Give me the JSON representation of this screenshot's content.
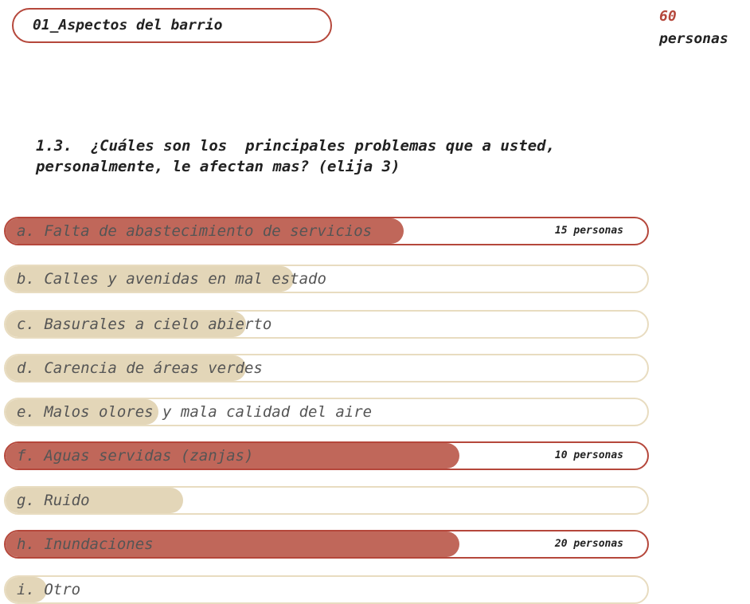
{
  "header": {
    "title": "01_Aspectos del barrio",
    "count": "60",
    "unit": "personas"
  },
  "question": {
    "lines": [
      "1.3.  ¿Cuáles son los  principales problemas que a usted,",
      "personalmente, le afectan mas? (elija 3)"
    ]
  },
  "options": [
    {
      "label": "a. Falta de abastecimiento de servicios",
      "note": "15 personas"
    },
    {
      "label": "b. Calles y avenidas en mal estado"
    },
    {
      "label": "c. Basurales a cielo abierto"
    },
    {
      "label": "d. Carencia de áreas verdes"
    },
    {
      "label": "e. Malos olores y mala calidad del aire"
    },
    {
      "label": "f. Aguas servidas (zanjas)",
      "note": "10 personas"
    },
    {
      "label": "g. Ruido"
    },
    {
      "label": "h. Inundaciones",
      "note": "20 personas"
    },
    {
      "label": "i. Otro"
    }
  ]
}
